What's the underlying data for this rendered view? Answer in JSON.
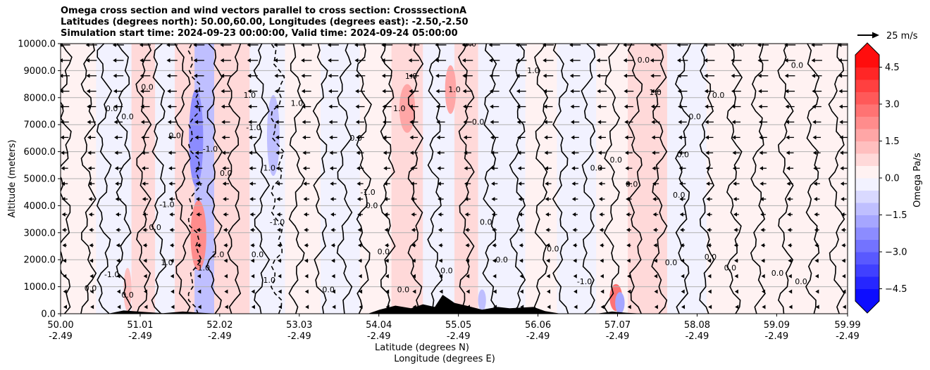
{
  "chart_data": {
    "type": "heatmap",
    "title_lines": [
      "Omega cross section and wind vectors parallel to cross section: CrosssectionA",
      "Latitudes (degrees north): 50.00,60.00, Longitudes (degrees east): -2.50,-2.50",
      "Simulation start time: 2024-09-23 00:00:00, Valid time: 2024-09-24 05:00:00"
    ],
    "xlabel": "Latitude (degrees N)",
    "xlabel2": "Longitude (degrees E)",
    "ylabel": "Altitude (meters)",
    "x_tick_lat": [
      "50.00",
      "51.01",
      "52.02",
      "53.03",
      "54.04",
      "55.05",
      "56.06",
      "57.07",
      "58.08",
      "59.09",
      "59.99"
    ],
    "x_tick_lon": [
      "-2.49",
      "-2.49",
      "-2.49",
      "-2.49",
      "-2.49",
      "-2.49",
      "-2.49",
      "-2.49",
      "-2.49",
      "-2.49",
      "-2.49"
    ],
    "x_tick_values": [
      50.0,
      51.01,
      52.02,
      53.03,
      54.04,
      55.05,
      56.06,
      57.07,
      58.08,
      59.09,
      59.99
    ],
    "xlim": [
      50.0,
      59.99
    ],
    "y_ticks": [
      "0.0",
      "1000.0",
      "2000.0",
      "3000.0",
      "4000.0",
      "5000.0",
      "6000.0",
      "7000.0",
      "8000.0",
      "9000.0",
      "10000.0"
    ],
    "ylim": [
      0,
      10000
    ],
    "grid": "horizontal",
    "colorbar": {
      "label": "Omega Pa/s",
      "ticks": [
        "4.5",
        "3.0",
        "1.5",
        "0.0",
        "−1.5",
        "−3.0",
        "−4.5"
      ],
      "tick_values": [
        4.5,
        3.0,
        1.5,
        0.0,
        -1.5,
        -3.0,
        -4.5
      ],
      "range": [
        -5.0,
        5.0
      ],
      "extend": "both",
      "colormap": "bwr",
      "low_color": "#0000ff",
      "mid_color": "#ffffff",
      "high_color": "#ff0000"
    },
    "quiver_key": {
      "label": "25 m/s",
      "speed": 25
    },
    "wind_direction": "southward (toward lower latitude)",
    "contour_levels": [
      -1.0,
      0.0,
      1.0
    ],
    "contour_labels": [
      {
        "text": "-1.0",
        "lat": 50.65,
        "alt": 1350
      },
      {
        "text": "0.0",
        "lat": 50.38,
        "alt": 850
      },
      {
        "text": "0.0",
        "lat": 50.85,
        "alt": 600
      },
      {
        "text": "0.0",
        "lat": 50.65,
        "alt": 7500
      },
      {
        "text": "0.0",
        "lat": 50.85,
        "alt": 7200
      },
      {
        "text": "0.0",
        "lat": 51.1,
        "alt": 8300
      },
      {
        "text": "-1.0",
        "lat": 51.35,
        "alt": 3950
      },
      {
        "text": "0.0",
        "lat": 51.2,
        "alt": 3100
      },
      {
        "text": "1.0",
        "lat": 51.35,
        "alt": 1800
      },
      {
        "text": "0.0",
        "lat": 51.45,
        "alt": 6500
      },
      {
        "text": "-1.0",
        "lat": 51.9,
        "alt": 6000
      },
      {
        "text": "-1.0",
        "lat": 51.8,
        "alt": 1600
      },
      {
        "text": "2.0",
        "lat": 52.0,
        "alt": 2100
      },
      {
        "text": "0.0",
        "lat": 52.1,
        "alt": 5100
      },
      {
        "text": "1.0",
        "lat": 52.4,
        "alt": 8000
      },
      {
        "text": "-1.0",
        "lat": 52.45,
        "alt": 6800
      },
      {
        "text": "1.0",
        "lat": 52.65,
        "alt": 5300
      },
      {
        "text": "-1.0",
        "lat": 52.75,
        "alt": 3300
      },
      {
        "text": "0.0",
        "lat": 52.5,
        "alt": 2100
      },
      {
        "text": "1.0",
        "lat": 52.65,
        "alt": 1150
      },
      {
        "text": "1.0",
        "lat": 53.0,
        "alt": 7700
      },
      {
        "text": "0.0",
        "lat": 53.4,
        "alt": 800
      },
      {
        "text": "-1.0",
        "lat": 53.9,
        "alt": 4400
      },
      {
        "text": "0.0",
        "lat": 53.95,
        "alt": 3900
      },
      {
        "text": "0.0",
        "lat": 54.1,
        "alt": 2200
      },
      {
        "text": "1.0",
        "lat": 54.3,
        "alt": 7500
      },
      {
        "text": "1.0",
        "lat": 54.45,
        "alt": 8700
      },
      {
        "text": "0.0",
        "lat": 53.75,
        "alt": 6400
      },
      {
        "text": "0.0",
        "lat": 54.35,
        "alt": 800
      },
      {
        "text": "0.0",
        "lat": 54.9,
        "alt": 1500
      },
      {
        "text": "1.0",
        "lat": 55.0,
        "alt": 8200
      },
      {
        "text": "0.0",
        "lat": 55.3,
        "alt": 7000
      },
      {
        "text": "0.0",
        "lat": 55.4,
        "alt": 3300
      },
      {
        "text": "0.0",
        "lat": 55.6,
        "alt": 1900
      },
      {
        "text": "0.0",
        "lat": 56.25,
        "alt": 2300
      },
      {
        "text": "1.0",
        "lat": 56.0,
        "alt": 8900
      },
      {
        "text": "0.0",
        "lat": 55.2,
        "alt": 9900
      },
      {
        "text": "0.0",
        "lat": 56.8,
        "alt": 5300
      },
      {
        "text": "-1.0",
        "lat": 56.65,
        "alt": 1100
      },
      {
        "text": "0.0",
        "lat": 57.05,
        "alt": 5600
      },
      {
        "text": "0.0",
        "lat": 57.25,
        "alt": 4700
      },
      {
        "text": "0.0",
        "lat": 57.75,
        "alt": 1800
      },
      {
        "text": "0.0",
        "lat": 57.4,
        "alt": 9300
      },
      {
        "text": "1.0",
        "lat": 57.55,
        "alt": 8100
      },
      {
        "text": "0.0",
        "lat": 57.9,
        "alt": 5800
      },
      {
        "text": "0.0",
        "lat": 57.85,
        "alt": 4300
      },
      {
        "text": "0.0",
        "lat": 58.25,
        "alt": 2000
      },
      {
        "text": "0.0",
        "lat": 58.5,
        "alt": 1600
      },
      {
        "text": "0.0",
        "lat": 58.6,
        "alt": 9900
      },
      {
        "text": "0.0",
        "lat": 58.35,
        "alt": 8000
      },
      {
        "text": "0.0",
        "lat": 58.05,
        "alt": 7200
      },
      {
        "text": "0.0",
        "lat": 59.1,
        "alt": 1400
      },
      {
        "text": "0.0",
        "lat": 59.4,
        "alt": 1100
      },
      {
        "text": "0.0",
        "lat": 59.35,
        "alt": 9100
      }
    ],
    "columns": [
      {
        "lat": 50.05,
        "dash": 0,
        "dir": 1
      },
      {
        "lat": 50.35,
        "dash": 0,
        "dir": -1
      },
      {
        "lat": 50.55,
        "dash": 0,
        "dir": 1
      },
      {
        "lat": 50.8,
        "dash": 0,
        "dir": -1
      },
      {
        "lat": 51.05,
        "dash": 0,
        "dir": 1
      },
      {
        "lat": 51.25,
        "dash": 0,
        "dir": -1
      },
      {
        "lat": 51.55,
        "dash": 0,
        "dir": 1
      },
      {
        "lat": 51.7,
        "dash": 1,
        "dir": 1
      },
      {
        "lat": 51.95,
        "dash": 0,
        "dir": -1
      },
      {
        "lat": 52.2,
        "dash": 0,
        "dir": 1
      },
      {
        "lat": 52.55,
        "dash": 0,
        "dir": -1
      },
      {
        "lat": 52.75,
        "dash": 1,
        "dir": 1
      },
      {
        "lat": 53.0,
        "dash": 0,
        "dir": 1
      },
      {
        "lat": 53.3,
        "dash": 0,
        "dir": -1
      },
      {
        "lat": 53.6,
        "dash": 0,
        "dir": 1
      },
      {
        "lat": 53.85,
        "dash": 0,
        "dir": -1
      },
      {
        "lat": 54.15,
        "dash": 0,
        "dir": 1
      },
      {
        "lat": 54.5,
        "dash": 0,
        "dir": -1
      },
      {
        "lat": 54.75,
        "dash": 0,
        "dir": 1
      },
      {
        "lat": 55.15,
        "dash": 0,
        "dir": -1
      },
      {
        "lat": 55.45,
        "dash": 0,
        "dir": 1
      },
      {
        "lat": 55.8,
        "dash": 0,
        "dir": -1
      },
      {
        "lat": 56.1,
        "dash": 0,
        "dir": 1
      },
      {
        "lat": 56.35,
        "dash": 0,
        "dir": -1
      },
      {
        "lat": 56.7,
        "dash": 0,
        "dir": 1
      },
      {
        "lat": 57.0,
        "dash": 0,
        "dir": -1
      },
      {
        "lat": 57.3,
        "dash": 0,
        "dir": 1
      },
      {
        "lat": 57.6,
        "dash": 0,
        "dir": -1
      },
      {
        "lat": 57.9,
        "dash": 0,
        "dir": 1
      },
      {
        "lat": 58.2,
        "dash": 0,
        "dir": -1
      },
      {
        "lat": 58.55,
        "dash": 0,
        "dir": 1
      },
      {
        "lat": 58.85,
        "dash": 0,
        "dir": -1
      },
      {
        "lat": 59.2,
        "dash": 0,
        "dir": 1
      },
      {
        "lat": 59.55,
        "dash": 0,
        "dir": -1
      },
      {
        "lat": 59.85,
        "dash": 0,
        "dir": 1
      }
    ],
    "color_bands": [
      {
        "lat0": 50.0,
        "lat1": 50.45,
        "omega": 0.4
      },
      {
        "lat0": 50.45,
        "lat1": 50.9,
        "omega": -0.4
      },
      {
        "lat0": 50.9,
        "lat1": 51.2,
        "omega": 0.6
      },
      {
        "lat0": 51.2,
        "lat1": 51.45,
        "omega": -0.5
      },
      {
        "lat0": 51.45,
        "lat1": 51.7,
        "omega": 0.8
      },
      {
        "lat0": 51.7,
        "lat1": 51.95,
        "omega": -1.2
      },
      {
        "lat0": 51.95,
        "lat1": 52.4,
        "omega": 0.5
      },
      {
        "lat0": 52.4,
        "lat1": 52.85,
        "omega": -0.4
      },
      {
        "lat0": 52.85,
        "lat1": 53.3,
        "omega": 0.4
      },
      {
        "lat0": 53.3,
        "lat1": 53.8,
        "omega": -0.3
      },
      {
        "lat0": 53.8,
        "lat1": 54.2,
        "omega": 0.3
      },
      {
        "lat0": 54.2,
        "lat1": 54.6,
        "omega": 0.7
      },
      {
        "lat0": 54.6,
        "lat1": 55.0,
        "omega": -0.3
      },
      {
        "lat0": 55.0,
        "lat1": 55.3,
        "omega": 0.6
      },
      {
        "lat0": 55.3,
        "lat1": 55.9,
        "omega": -0.3
      },
      {
        "lat0": 55.9,
        "lat1": 56.3,
        "omega": 0.4
      },
      {
        "lat0": 56.3,
        "lat1": 56.8,
        "omega": -0.3
      },
      {
        "lat0": 56.8,
        "lat1": 57.2,
        "omega": 0.3
      },
      {
        "lat0": 57.2,
        "lat1": 57.7,
        "omega": 0.5
      },
      {
        "lat0": 57.7,
        "lat1": 58.2,
        "omega": -0.3
      },
      {
        "lat0": 58.2,
        "lat1": 58.7,
        "omega": 0.2
      },
      {
        "lat0": 58.7,
        "lat1": 59.3,
        "omega": 0.3
      },
      {
        "lat0": 59.3,
        "lat1": 59.99,
        "omega": 0.2
      }
    ],
    "blobs": [
      {
        "lat": 51.72,
        "alt": 6500,
        "wlat": 0.09,
        "walt": 1800,
        "omega": -2.5
      },
      {
        "lat": 51.75,
        "alt": 2900,
        "wlat": 0.1,
        "walt": 1300,
        "omega": 2.0
      },
      {
        "lat": 52.7,
        "alt": 6600,
        "wlat": 0.08,
        "walt": 1500,
        "omega": -1.5
      },
      {
        "lat": 54.4,
        "alt": 7600,
        "wlat": 0.1,
        "walt": 900,
        "omega": 1.8
      },
      {
        "lat": 54.95,
        "alt": 8300,
        "wlat": 0.07,
        "walt": 900,
        "omega": 1.8
      },
      {
        "lat": 57.05,
        "alt": 600,
        "wlat": 0.08,
        "walt": 500,
        "omega": 2.5
      },
      {
        "lat": 57.1,
        "alt": 400,
        "wlat": 0.06,
        "walt": 400,
        "omega": -2.0
      },
      {
        "lat": 50.85,
        "alt": 900,
        "wlat": 0.05,
        "walt": 800,
        "omega": 1.2
      },
      {
        "lat": 55.35,
        "alt": 500,
        "wlat": 0.05,
        "walt": 400,
        "omega": -1.5
      }
    ],
    "terrain": [
      {
        "lat": 50.0,
        "alt": 0
      },
      {
        "lat": 50.6,
        "alt": 0
      },
      {
        "lat": 50.8,
        "alt": 120
      },
      {
        "lat": 51.1,
        "alt": 60
      },
      {
        "lat": 51.3,
        "alt": 20
      },
      {
        "lat": 51.55,
        "alt": 80
      },
      {
        "lat": 51.8,
        "alt": 30
      },
      {
        "lat": 52.0,
        "alt": 0
      },
      {
        "lat": 53.9,
        "alt": 0
      },
      {
        "lat": 54.05,
        "alt": 150
      },
      {
        "lat": 54.25,
        "alt": 300
      },
      {
        "lat": 54.45,
        "alt": 200
      },
      {
        "lat": 54.6,
        "alt": 350
      },
      {
        "lat": 54.75,
        "alt": 250
      },
      {
        "lat": 54.85,
        "alt": 700
      },
      {
        "lat": 55.0,
        "alt": 400
      },
      {
        "lat": 55.15,
        "alt": 300
      },
      {
        "lat": 55.35,
        "alt": 150
      },
      {
        "lat": 55.55,
        "alt": 250
      },
      {
        "lat": 55.7,
        "alt": 200
      },
      {
        "lat": 56.0,
        "alt": 250
      },
      {
        "lat": 56.15,
        "alt": 100
      },
      {
        "lat": 56.35,
        "alt": 0
      },
      {
        "lat": 56.8,
        "alt": 0
      },
      {
        "lat": 57.0,
        "alt": 80
      },
      {
        "lat": 57.2,
        "alt": 30
      },
      {
        "lat": 57.4,
        "alt": 0
      },
      {
        "lat": 59.99,
        "alt": 0
      }
    ]
  }
}
